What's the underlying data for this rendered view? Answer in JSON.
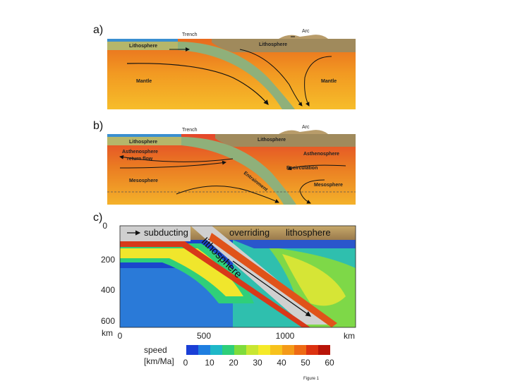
{
  "panels": {
    "a": {
      "label": "a)",
      "trench": "Trench",
      "arc": "Arc",
      "lithosphere_left": "Lithosphere",
      "lithosphere_right": "Lithosphere",
      "mantle_left": "Mantle",
      "mantle_right": "Mantle"
    },
    "b": {
      "label": "b)",
      "trench": "Trench",
      "arc": "Arc",
      "lithosphere_left": "Lithosphere",
      "lithosphere_right": "Lithosphere",
      "asthenosphere_left_1": "Asthenosphere",
      "asthenosphere_left_2": "return flow",
      "asthenosphere_right": "Asthenosphere",
      "recirculation": "Recirculation",
      "entrainment": "Entrainment",
      "mesosphere_left": "Mesosphere",
      "mesosphere_right": "Mesosphere"
    },
    "c": {
      "label": "c)",
      "subducting": "subducting",
      "overriding": "overriding",
      "lithosphere_top": "lithosphere",
      "slab_label": "lithosphere",
      "depth_ticks": [
        "0",
        "200",
        "400",
        "600"
      ],
      "depth_unit": "km",
      "x_ticks": [
        "0",
        "500",
        "1000"
      ],
      "x_unit": "km",
      "legend_title_1": "speed",
      "legend_title_2": "[km/Ma]",
      "legend_ticks": [
        "0",
        "10",
        "20",
        "30",
        "40",
        "50",
        "60"
      ],
      "legend_colors": [
        "#1a3fd6",
        "#1f7ee0",
        "#1fb8c8",
        "#2ecf7a",
        "#7fdc3c",
        "#c8e632",
        "#f5ea28",
        "#f7c21c",
        "#f49a18",
        "#ee6a14",
        "#dc3210",
        "#b81408"
      ]
    }
  },
  "caption": "Figure 1"
}
